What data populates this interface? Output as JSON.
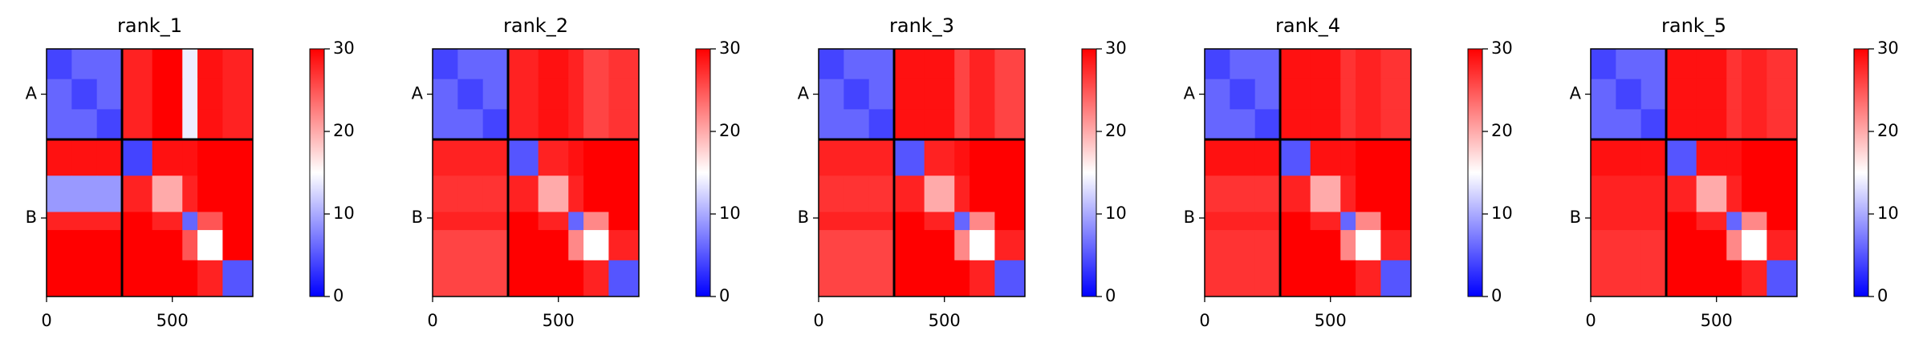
{
  "chart_data": [
    {
      "type": "heatmap",
      "title": "rank_1",
      "x_edges": [
        0,
        100,
        200,
        300,
        420,
        540,
        600,
        700,
        820
      ],
      "y_edges": [
        0,
        100,
        200,
        300,
        420,
        540,
        600,
        700,
        820
      ],
      "z": [
        [
          4,
          6,
          6,
          28,
          30,
          14,
          29,
          28
        ],
        [
          6,
          4,
          6,
          28,
          30,
          14,
          29,
          28
        ],
        [
          6,
          6,
          4,
          28,
          30,
          14,
          29,
          28
        ],
        [
          29,
          29,
          29,
          4,
          29,
          29,
          30,
          30
        ],
        [
          9,
          9,
          9,
          28,
          20,
          28,
          30,
          30
        ],
        [
          28,
          28,
          28,
          30,
          28,
          6,
          25,
          30
        ],
        [
          30,
          30,
          30,
          30,
          30,
          25,
          15,
          30
        ],
        [
          30,
          30,
          30,
          30,
          30,
          30,
          28,
          5
        ]
      ],
      "xlim": [
        0,
        820
      ],
      "ylim": [
        820,
        0
      ],
      "xticks": [
        0,
        500
      ],
      "yticks": [
        {
          "value": 150,
          "label": "A"
        },
        {
          "value": 560,
          "label": "B"
        }
      ],
      "boundaries": [
        300
      ],
      "clim": [
        0,
        30
      ],
      "cticks": [
        0,
        10,
        20,
        30
      ],
      "colors": [
        "#0000ff",
        "#ffffff",
        "#ff0000"
      ]
    },
    {
      "type": "heatmap",
      "title": "rank_2",
      "x_edges": [
        0,
        100,
        200,
        300,
        420,
        540,
        600,
        700,
        820
      ],
      "y_edges": [
        0,
        100,
        200,
        300,
        420,
        540,
        600,
        700,
        820
      ],
      "z": [
        [
          4,
          6,
          6,
          28,
          29,
          28,
          26,
          27
        ],
        [
          6,
          4,
          6,
          28,
          29,
          28,
          26,
          27
        ],
        [
          6,
          6,
          4,
          28,
          29,
          28,
          26,
          27
        ],
        [
          28,
          28,
          28,
          5,
          28,
          29,
          30,
          30
        ],
        [
          27,
          27,
          27,
          28,
          20,
          28,
          30,
          30
        ],
        [
          28,
          28,
          28,
          30,
          28,
          6,
          22,
          30
        ],
        [
          26,
          26,
          26,
          30,
          30,
          22,
          15,
          28
        ],
        [
          26,
          26,
          26,
          30,
          30,
          30,
          28,
          5
        ]
      ],
      "xlim": [
        0,
        820
      ],
      "ylim": [
        820,
        0
      ],
      "xticks": [
        0,
        500
      ],
      "yticks": [
        {
          "value": 150,
          "label": "A"
        },
        {
          "value": 560,
          "label": "B"
        }
      ],
      "boundaries": [
        300
      ],
      "clim": [
        0,
        30
      ],
      "cticks": [
        0,
        10,
        20,
        30
      ],
      "colors": [
        "#0000ff",
        "#ffffff",
        "#ff0000"
      ]
    },
    {
      "type": "heatmap",
      "title": "rank_3",
      "x_edges": [
        0,
        100,
        200,
        300,
        420,
        540,
        600,
        700,
        820
      ],
      "y_edges": [
        0,
        100,
        200,
        300,
        420,
        540,
        600,
        700,
        820
      ],
      "z": [
        [
          4,
          6,
          6,
          29,
          29,
          26,
          28,
          26
        ],
        [
          6,
          4,
          6,
          29,
          29,
          26,
          28,
          26
        ],
        [
          6,
          6,
          4,
          29,
          29,
          26,
          28,
          26
        ],
        [
          28,
          28,
          28,
          5,
          28,
          29,
          30,
          30
        ],
        [
          27,
          27,
          27,
          28,
          20,
          28,
          30,
          30
        ],
        [
          28,
          28,
          28,
          30,
          28,
          6,
          22,
          30
        ],
        [
          26,
          26,
          26,
          30,
          30,
          22,
          15,
          28
        ],
        [
          26,
          26,
          26,
          30,
          30,
          30,
          28,
          5
        ]
      ],
      "xlim": [
        0,
        820
      ],
      "ylim": [
        820,
        0
      ],
      "xticks": [
        0,
        500
      ],
      "yticks": [
        {
          "value": 150,
          "label": "A"
        },
        {
          "value": 560,
          "label": "B"
        }
      ],
      "boundaries": [
        300
      ],
      "clim": [
        0,
        30
      ],
      "cticks": [
        0,
        10,
        20,
        30
      ],
      "colors": [
        "#0000ff",
        "#ffffff",
        "#ff0000"
      ]
    },
    {
      "type": "heatmap",
      "title": "rank_4",
      "x_edges": [
        0,
        100,
        200,
        300,
        420,
        540,
        600,
        700,
        820
      ],
      "y_edges": [
        0,
        100,
        200,
        300,
        420,
        540,
        600,
        700,
        820
      ],
      "z": [
        [
          4,
          6,
          6,
          29,
          29,
          27,
          28,
          27
        ],
        [
          6,
          4,
          6,
          29,
          29,
          27,
          28,
          27
        ],
        [
          6,
          6,
          4,
          29,
          29,
          27,
          28,
          27
        ],
        [
          29,
          29,
          29,
          5,
          29,
          29,
          30,
          30
        ],
        [
          27,
          27,
          27,
          28,
          20,
          28,
          30,
          30
        ],
        [
          28,
          28,
          28,
          30,
          28,
          6,
          22,
          30
        ],
        [
          27,
          27,
          27,
          30,
          30,
          22,
          15,
          28
        ],
        [
          27,
          27,
          27,
          30,
          30,
          30,
          28,
          5
        ]
      ],
      "xlim": [
        0,
        820
      ],
      "ylim": [
        820,
        0
      ],
      "xticks": [
        0,
        500
      ],
      "yticks": [
        {
          "value": 150,
          "label": "A"
        },
        {
          "value": 560,
          "label": "B"
        }
      ],
      "boundaries": [
        300
      ],
      "clim": [
        0,
        30
      ],
      "cticks": [
        0,
        10,
        20,
        30
      ],
      "colors": [
        "#0000ff",
        "#ffffff",
        "#ff0000"
      ]
    },
    {
      "type": "heatmap",
      "title": "rank_5",
      "x_edges": [
        0,
        100,
        200,
        300,
        420,
        540,
        600,
        700,
        820
      ],
      "y_edges": [
        0,
        100,
        200,
        300,
        420,
        540,
        600,
        700,
        820
      ],
      "z": [
        [
          4,
          6,
          6,
          29,
          29,
          27,
          28,
          27
        ],
        [
          6,
          4,
          6,
          29,
          29,
          27,
          28,
          27
        ],
        [
          6,
          6,
          4,
          29,
          29,
          27,
          28,
          27
        ],
        [
          29,
          29,
          29,
          5,
          29,
          29,
          30,
          30
        ],
        [
          28,
          28,
          28,
          28,
          20,
          28,
          30,
          30
        ],
        [
          28,
          28,
          28,
          30,
          28,
          6,
          22,
          30
        ],
        [
          27,
          27,
          27,
          30,
          30,
          22,
          15,
          28
        ],
        [
          27,
          27,
          27,
          30,
          30,
          30,
          28,
          5
        ]
      ],
      "xlim": [
        0,
        820
      ],
      "ylim": [
        820,
        0
      ],
      "xticks": [
        0,
        500
      ],
      "yticks": [
        {
          "value": 150,
          "label": "A"
        },
        {
          "value": 560,
          "label": "B"
        }
      ],
      "boundaries": [
        300
      ],
      "clim": [
        0,
        30
      ],
      "cticks": [
        0,
        10,
        20,
        30
      ],
      "colors": [
        "#0000ff",
        "#ffffff",
        "#ff0000"
      ]
    }
  ]
}
